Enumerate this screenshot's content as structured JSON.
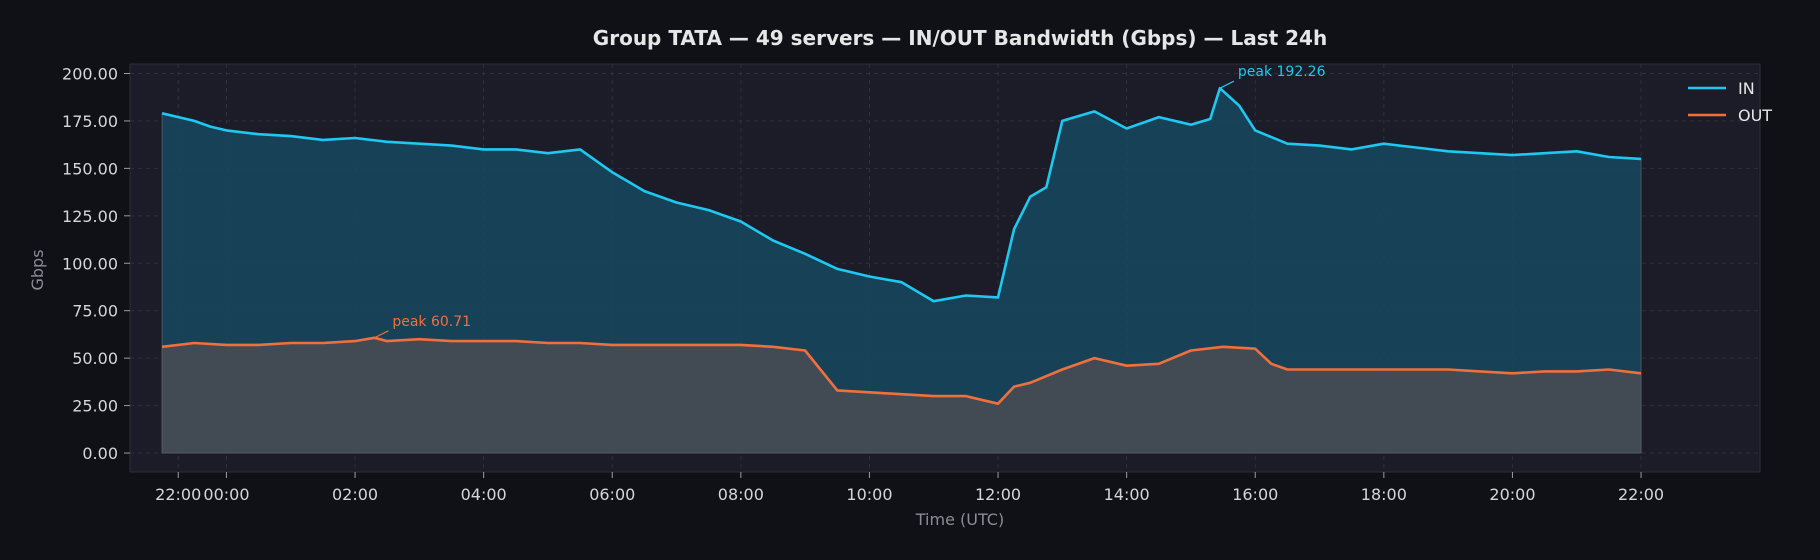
{
  "chart_data": {
    "type": "line",
    "title": "Group TATA — 49 servers — IN/OUT Bandwidth (Gbps) — Last 24h",
    "xlabel": "Time (UTC)",
    "ylabel": "Gbps",
    "x_unit": "hours",
    "xlim": [
      -1.5,
      23.85
    ],
    "ylim": [
      -10,
      205
    ],
    "x_ticks": [
      {
        "x": -0.75,
        "label": "22:00"
      },
      {
        "x": 0,
        "label": "00:00"
      },
      {
        "x": 2,
        "label": "02:00"
      },
      {
        "x": 4,
        "label": "04:00"
      },
      {
        "x": 6,
        "label": "06:00"
      },
      {
        "x": 8,
        "label": "08:00"
      },
      {
        "x": 10,
        "label": "10:00"
      },
      {
        "x": 12,
        "label": "12:00"
      },
      {
        "x": 14,
        "label": "14:00"
      },
      {
        "x": 16,
        "label": "16:00"
      },
      {
        "x": 18,
        "label": "18:00"
      },
      {
        "x": 20,
        "label": "20:00"
      },
      {
        "x": 22,
        "label": "22:00"
      }
    ],
    "y_ticks": [
      {
        "y": 0,
        "label": "0.00"
      },
      {
        "y": 25,
        "label": "25.00"
      },
      {
        "y": 50,
        "label": "50.00"
      },
      {
        "y": 75,
        "label": "75.00"
      },
      {
        "y": 100,
        "label": "100.00"
      },
      {
        "y": 125,
        "label": "125.00"
      },
      {
        "y": 150,
        "label": "150.00"
      },
      {
        "y": 175,
        "label": "175.00"
      },
      {
        "y": 200,
        "label": "200.00"
      }
    ],
    "grid": true,
    "legend_position": "top-right",
    "series": [
      {
        "name": "IN",
        "color": "#1ec8f0",
        "fill": "#16485f",
        "points": [
          [
            -1,
            179
          ],
          [
            -0.5,
            175
          ],
          [
            -0.25,
            172
          ],
          [
            0,
            170
          ],
          [
            0.5,
            168
          ],
          [
            1,
            167
          ],
          [
            1.5,
            165
          ],
          [
            2,
            166
          ],
          [
            2.5,
            164
          ],
          [
            3,
            163
          ],
          [
            3.5,
            162
          ],
          [
            4,
            160
          ],
          [
            4.5,
            160
          ],
          [
            5,
            158
          ],
          [
            5.5,
            160
          ],
          [
            6,
            148
          ],
          [
            6.5,
            138
          ],
          [
            7,
            132
          ],
          [
            7.5,
            128
          ],
          [
            8,
            122
          ],
          [
            8.5,
            112
          ],
          [
            9,
            105
          ],
          [
            9.5,
            97
          ],
          [
            10,
            93
          ],
          [
            10.5,
            90
          ],
          [
            11,
            80
          ],
          [
            11.5,
            83
          ],
          [
            12,
            82
          ],
          [
            12.25,
            118
          ],
          [
            12.5,
            135
          ],
          [
            12.75,
            140
          ],
          [
            13,
            175
          ],
          [
            13.5,
            180
          ],
          [
            14,
            171
          ],
          [
            14.5,
            177
          ],
          [
            15,
            173
          ],
          [
            15.3,
            176
          ],
          [
            15.45,
            192.26
          ],
          [
            15.75,
            183
          ],
          [
            16,
            170
          ],
          [
            16.5,
            163
          ],
          [
            17,
            162
          ],
          [
            17.5,
            160
          ],
          [
            18,
            163
          ],
          [
            18.5,
            161
          ],
          [
            19,
            159
          ],
          [
            19.5,
            158
          ],
          [
            20,
            157
          ],
          [
            20.5,
            158
          ],
          [
            21,
            159
          ],
          [
            21.5,
            156
          ],
          [
            22,
            155
          ]
        ],
        "annotation": {
          "text": "peak 192.26",
          "x": 15.45,
          "y": 192.26
        }
      },
      {
        "name": "OUT",
        "color": "#f0703c",
        "fill": "#4a4d52",
        "points": [
          [
            -1,
            56
          ],
          [
            -0.5,
            58
          ],
          [
            0,
            57
          ],
          [
            0.5,
            57
          ],
          [
            1,
            58
          ],
          [
            1.5,
            58
          ],
          [
            2,
            59
          ],
          [
            2.3,
            60.71
          ],
          [
            2.5,
            59
          ],
          [
            3,
            60
          ],
          [
            3.5,
            59
          ],
          [
            4,
            59
          ],
          [
            4.5,
            59
          ],
          [
            5,
            58
          ],
          [
            5.5,
            58
          ],
          [
            6,
            57
          ],
          [
            6.5,
            57
          ],
          [
            7,
            57
          ],
          [
            7.5,
            57
          ],
          [
            8,
            57
          ],
          [
            8.5,
            56
          ],
          [
            9,
            54
          ],
          [
            9.5,
            33
          ],
          [
            10,
            32
          ],
          [
            10.5,
            31
          ],
          [
            11,
            30
          ],
          [
            11.5,
            30
          ],
          [
            12,
            26
          ],
          [
            12.25,
            35
          ],
          [
            12.5,
            37
          ],
          [
            13,
            44
          ],
          [
            13.5,
            50
          ],
          [
            14,
            46
          ],
          [
            14.5,
            47
          ],
          [
            15,
            54
          ],
          [
            15.5,
            56
          ],
          [
            16,
            55
          ],
          [
            16.25,
            47
          ],
          [
            16.5,
            44
          ],
          [
            17,
            44
          ],
          [
            17.5,
            44
          ],
          [
            18,
            44
          ],
          [
            18.5,
            44
          ],
          [
            19,
            44
          ],
          [
            19.5,
            43
          ],
          [
            20,
            42
          ],
          [
            20.5,
            43
          ],
          [
            21,
            43
          ],
          [
            21.5,
            44
          ],
          [
            22,
            42
          ]
        ],
        "annotation": {
          "text": "peak 60.71",
          "x": 2.3,
          "y": 60.71
        }
      }
    ]
  }
}
